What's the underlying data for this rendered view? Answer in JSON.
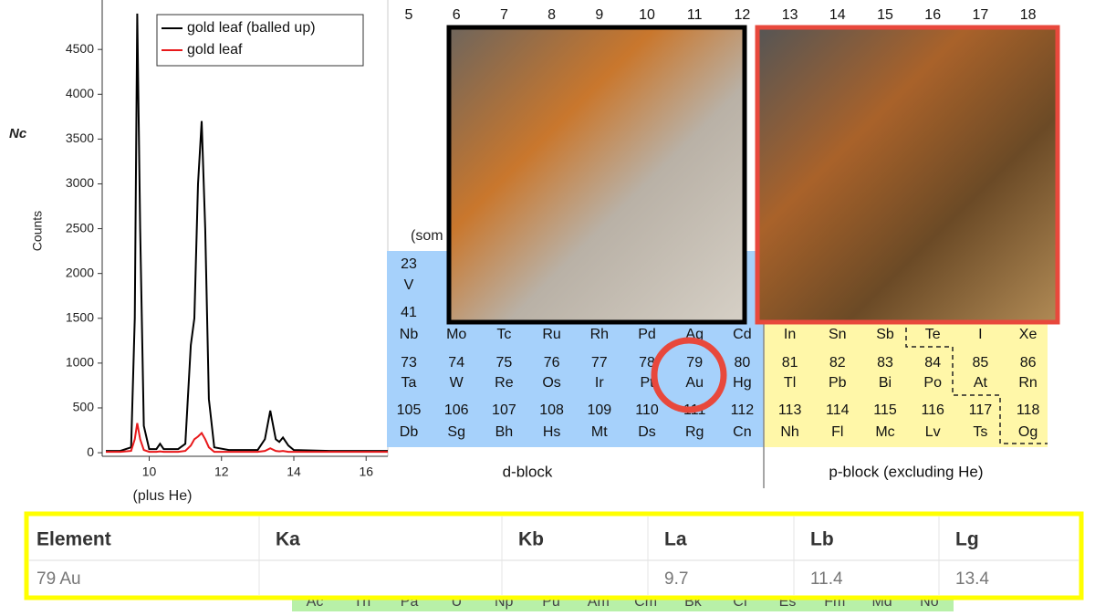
{
  "chart_data": {
    "type": "line",
    "y_label": "Counts",
    "x": [
      8.8,
      9.2,
      9.5,
      9.6,
      9.67,
      9.75,
      9.85,
      10.0,
      10.2,
      10.3,
      10.4,
      10.8,
      11.0,
      11.15,
      11.25,
      11.35,
      11.45,
      11.55,
      11.65,
      11.8,
      12.2,
      13.0,
      13.2,
      13.35,
      13.5,
      13.6,
      13.7,
      13.85,
      14.0,
      15.0,
      16.0,
      16.6
    ],
    "series": [
      {
        "name": "gold leaf (balled up)",
        "color": "#000000",
        "values": [
          20,
          20,
          60,
          1500,
          4900,
          2500,
          300,
          40,
          40,
          100,
          40,
          40,
          100,
          1200,
          1500,
          3000,
          3700,
          2500,
          600,
          60,
          30,
          30,
          150,
          470,
          150,
          120,
          170,
          80,
          30,
          20,
          20,
          20
        ]
      },
      {
        "name": "gold leaf",
        "color": "#e8191b",
        "values": [
          10,
          10,
          20,
          150,
          330,
          150,
          30,
          10,
          10,
          15,
          10,
          10,
          20,
          80,
          150,
          180,
          220,
          150,
          60,
          10,
          10,
          10,
          20,
          50,
          20,
          15,
          20,
          10,
          10,
          10,
          10,
          10
        ]
      }
    ],
    "xlim": [
      8.7,
      16.6
    ],
    "xticks": [
      10,
      12,
      14,
      16
    ],
    "ylim": [
      -40,
      4950
    ],
    "yticks": [
      0,
      500,
      1000,
      1500,
      2000,
      2500,
      3000,
      3500,
      4000,
      4500
    ],
    "legend": "top-right"
  },
  "fragments": {
    "left_label": "Nc",
    "middle_label": "(som",
    "bottom_label": "(plus He)"
  },
  "periodic_table": {
    "groups": [
      5,
      6,
      7,
      8,
      9,
      10,
      11,
      12,
      13,
      14,
      15,
      16,
      17,
      18
    ],
    "rows": [
      {
        "numbers": [
          23,
          null,
          null,
          null,
          null,
          null,
          null,
          null,
          null,
          null,
          null,
          null,
          null,
          null
        ],
        "symbols": [
          "V",
          null,
          null,
          null,
          null,
          null,
          null,
          null,
          null,
          null,
          null,
          null,
          null,
          null
        ]
      },
      {
        "numbers": [
          41,
          null,
          null,
          null,
          null,
          null,
          null,
          null,
          null,
          null,
          null,
          null,
          null,
          null
        ],
        "symbols": [
          "Nb",
          "Mo",
          "Tc",
          "Ru",
          "Rh",
          "Pd",
          "Ag",
          "Cd",
          "In",
          "Sn",
          "Sb",
          "Te",
          "I",
          "Xe"
        ]
      },
      {
        "numbers": [
          73,
          74,
          75,
          76,
          77,
          78,
          79,
          80,
          81,
          82,
          83,
          84,
          85,
          86
        ],
        "symbols": [
          "Ta",
          "W",
          "Re",
          "Os",
          "Ir",
          "Pt",
          "Au",
          "Hg",
          "Tl",
          "Pb",
          "Bi",
          "Po",
          "At",
          "Rn"
        ]
      },
      {
        "numbers": [
          105,
          106,
          107,
          108,
          109,
          110,
          111,
          112,
          113,
          114,
          115,
          116,
          117,
          118
        ],
        "symbols": [
          "Db",
          "Sg",
          "Bh",
          "Hs",
          "Mt",
          "Ds",
          "Rg",
          "Cn",
          "Nh",
          "Fl",
          "Mc",
          "Lv",
          "Ts",
          "Og"
        ]
      }
    ],
    "actinides": [
      "Ac",
      "Th",
      "Pa",
      "U",
      "Np",
      "Pu",
      "Am",
      "Cm",
      "Bk",
      "Cf",
      "Es",
      "Fm",
      "Md",
      "No"
    ],
    "d_block_label": "d-block",
    "p_block_label": "p-block (excluding He)"
  },
  "table": {
    "header": [
      "Element",
      "Ka",
      "Kb",
      "La",
      "Lb",
      "Lg"
    ],
    "rows": [
      [
        "79 Au",
        null,
        null,
        9.7,
        11.4,
        13.4
      ]
    ]
  }
}
